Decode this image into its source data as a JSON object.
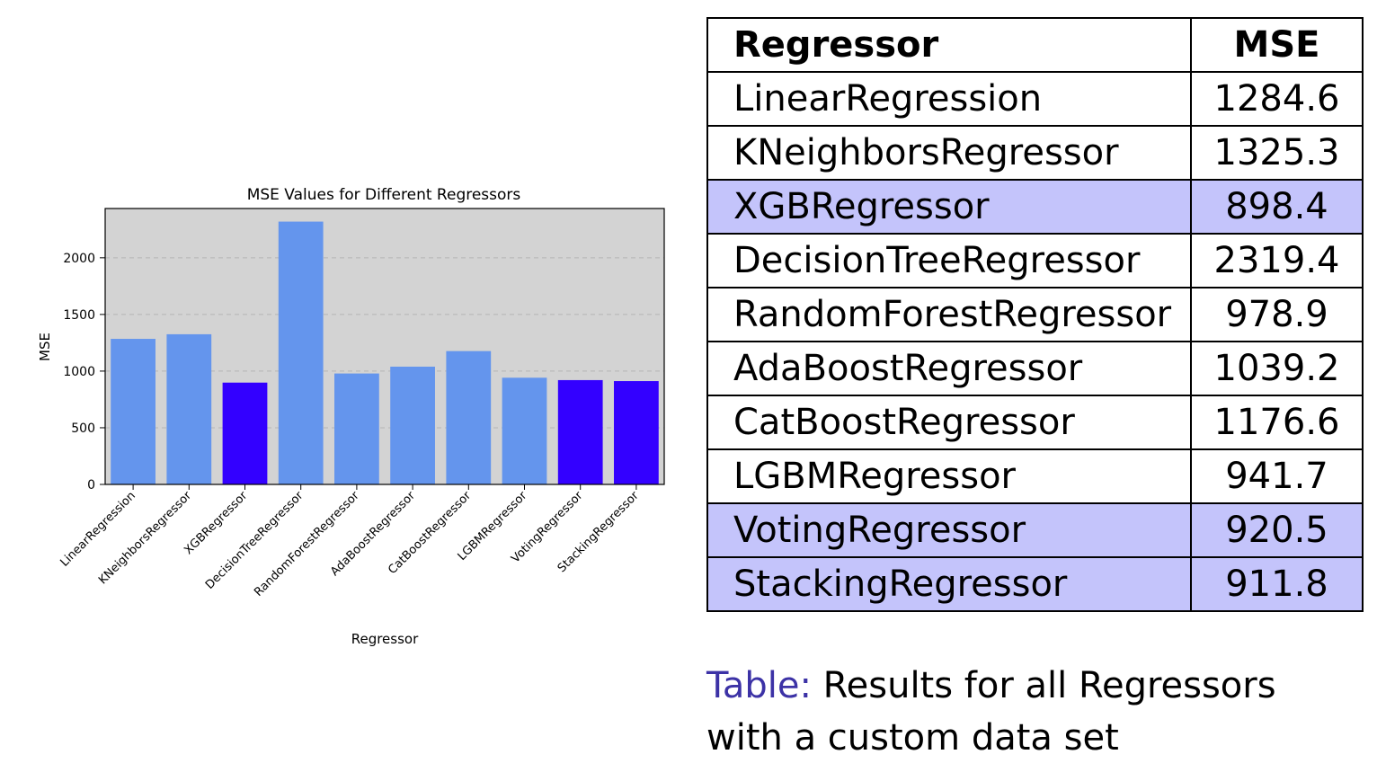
{
  "chart_data": {
    "type": "bar",
    "title": "MSE Values for Different Regressors",
    "xlabel": "Regressor",
    "ylabel": "MSE",
    "categories": [
      "LinearRegression",
      "KNeighborsRegressor",
      "XGBRegressor",
      "DecisionTreeRegressor",
      "RandomForestRegressor",
      "AdaBoostRegressor",
      "CatBoostRegressor",
      "LGBMRegressor",
      "VotingRegressor",
      "StackingRegressor"
    ],
    "values": [
      1284.6,
      1325.3,
      898.4,
      2319.4,
      978.9,
      1039.2,
      1176.6,
      941.7,
      920.5,
      911.8
    ],
    "bar_colors": [
      "#6495ed",
      "#6495ed",
      "#3300ff",
      "#6495ed",
      "#6495ed",
      "#6495ed",
      "#6495ed",
      "#6495ed",
      "#3300ff",
      "#3300ff"
    ],
    "yticks": [
      0,
      500,
      1000,
      1500,
      2000
    ],
    "ylim": [
      0,
      2435
    ],
    "grid": "y-dashed",
    "plot_background": "#d3d3d3"
  },
  "table": {
    "headers": [
      "Regressor",
      "MSE"
    ],
    "rows": [
      {
        "name": "LinearRegression",
        "mse": "1284.6",
        "highlight": false
      },
      {
        "name": "KNeighborsRegressor",
        "mse": "1325.3",
        "highlight": false
      },
      {
        "name": "XGBRegressor",
        "mse": "898.4",
        "highlight": true
      },
      {
        "name": "DecisionTreeRegressor",
        "mse": "2319.4",
        "highlight": false
      },
      {
        "name": "RandomForestRegressor",
        "mse": "978.9",
        "highlight": false
      },
      {
        "name": "AdaBoostRegressor",
        "mse": "1039.2",
        "highlight": false
      },
      {
        "name": "CatBoostRegressor",
        "mse": "1176.6",
        "highlight": false
      },
      {
        "name": "LGBMRegressor",
        "mse": "941.7",
        "highlight": false
      },
      {
        "name": "VotingRegressor",
        "mse": "920.5",
        "highlight": true
      },
      {
        "name": "StackingRegressor",
        "mse": "911.8",
        "highlight": true
      }
    ],
    "highlight_color": "#c4c4fb"
  },
  "caption": {
    "label": "Table:",
    "line1": "Results for all Regressors",
    "line2": "with a custom data set",
    "label_color": "#3c32a6"
  }
}
